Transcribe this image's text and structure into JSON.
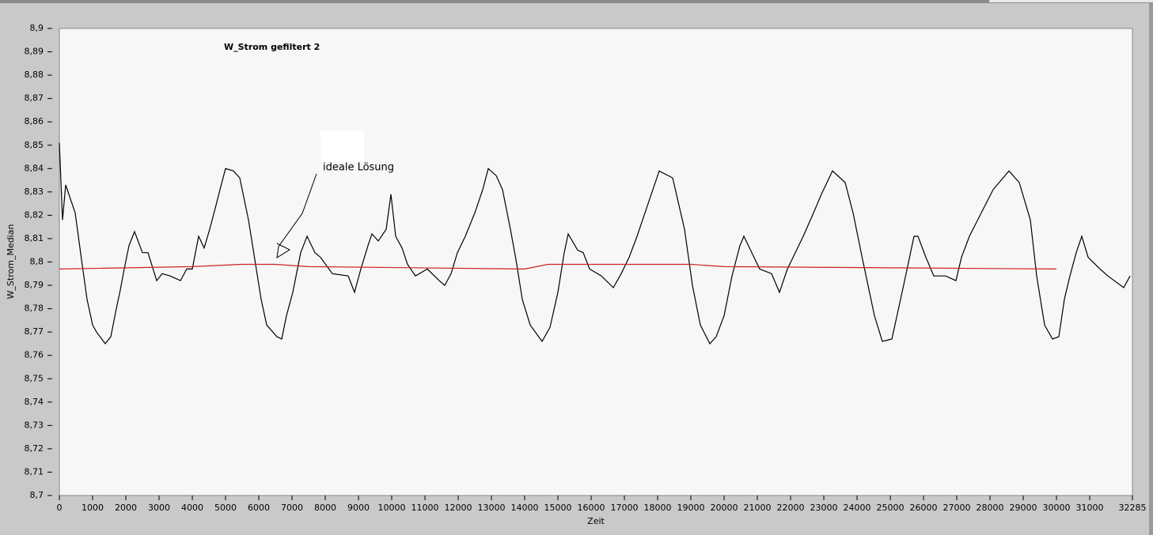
{
  "chart_data": {
    "type": "line",
    "title": "W_Strom gefiltert 2",
    "xlabel": "Zeit",
    "ylabel": "W_Strom_Median",
    "annotation": "ideale Lösung",
    "xlim": [
      0,
      32285
    ],
    "ylim": [
      8.7,
      8.9
    ],
    "xticks": [
      0,
      1000,
      2000,
      3000,
      4000,
      5000,
      6000,
      7000,
      8000,
      9000,
      10000,
      11000,
      12000,
      13000,
      14000,
      15000,
      16000,
      17000,
      18000,
      19000,
      20000,
      21000,
      22000,
      23000,
      24000,
      25000,
      26000,
      27000,
      28000,
      29000,
      30000,
      31000,
      32285
    ],
    "yticks": [
      {
        "value": 8.7,
        "label": "8,7"
      },
      {
        "value": 8.71,
        "label": "8,71"
      },
      {
        "value": 8.72,
        "label": "8,72"
      },
      {
        "value": 8.73,
        "label": "8,73"
      },
      {
        "value": 8.74,
        "label": "8,74"
      },
      {
        "value": 8.75,
        "label": "8,75"
      },
      {
        "value": 8.76,
        "label": "8,76"
      },
      {
        "value": 8.77,
        "label": "8,77"
      },
      {
        "value": 8.78,
        "label": "8,78"
      },
      {
        "value": 8.79,
        "label": "8,79"
      },
      {
        "value": 8.8,
        "label": "8,8"
      },
      {
        "value": 8.81,
        "label": "8,81"
      },
      {
        "value": 8.82,
        "label": "8,82"
      },
      {
        "value": 8.83,
        "label": "8,83"
      },
      {
        "value": 8.84,
        "label": "8,84"
      },
      {
        "value": 8.85,
        "label": "8,85"
      },
      {
        "value": 8.86,
        "label": "8,86"
      },
      {
        "value": 8.87,
        "label": "8,87"
      },
      {
        "value": 8.88,
        "label": "8,88"
      },
      {
        "value": 8.89,
        "label": "8,89"
      },
      {
        "value": 8.9,
        "label": "8,9"
      }
    ],
    "series": [
      {
        "color": "#000000",
        "x": [
          0,
          95,
          190,
          476,
          667,
          833,
          1000,
          1119,
          1381,
          1548,
          1714,
          1833,
          1952,
          2095,
          2262,
          2500,
          2667,
          2929,
          3095,
          3333,
          3643,
          3833,
          4000,
          4190,
          4357,
          4524,
          4690,
          4833,
          5000,
          5238,
          5429,
          5690,
          5881,
          6071,
          6238,
          6548,
          6690,
          6833,
          7024,
          7262,
          7452,
          7690,
          7857,
          8214,
          8690,
          8881,
          9071,
          9286,
          9405,
          9595,
          9833,
          9976,
          10119,
          10310,
          10476,
          10714,
          11071,
          11429,
          11595,
          11786,
          11976,
          12214,
          12500,
          12738,
          12905,
          13143,
          13333,
          13571,
          13738,
          13929,
          14167,
          14524,
          14762,
          15000,
          15190,
          15310,
          15595,
          15762,
          15952,
          16310,
          16667,
          16905,
          17143,
          17381,
          17619,
          17857,
          18048,
          18452,
          18810,
          19048,
          19286,
          19571,
          19762,
          20000,
          20238,
          20476,
          20595,
          20833,
          21071,
          21429,
          21667,
          21905,
          22143,
          22381,
          22690,
          22929,
          23262,
          23643,
          23881,
          24167,
          24524,
          24762,
          25048,
          25310,
          25476,
          25714,
          25833,
          26071,
          26310,
          26667,
          26976,
          27143,
          27381,
          27738,
          28095,
          28571,
          28881,
          29214,
          29405,
          29643,
          29881,
          30071,
          30238,
          30405,
          30595,
          30762,
          30952,
          31310,
          31548,
          32024,
          32214
        ],
        "values": [
          8.851,
          8.818,
          8.833,
          8.821,
          8.801,
          8.784,
          8.773,
          8.77,
          8.765,
          8.768,
          8.78,
          8.788,
          8.797,
          8.807,
          8.813,
          8.804,
          8.804,
          8.792,
          8.795,
          8.794,
          8.792,
          8.797,
          8.797,
          8.811,
          8.806,
          8.814,
          8.823,
          8.831,
          8.84,
          8.839,
          8.836,
          8.818,
          8.801,
          8.784,
          8.773,
          8.768,
          8.767,
          8.777,
          8.787,
          8.804,
          8.811,
          8.804,
          8.802,
          8.795,
          8.794,
          8.787,
          8.797,
          8.807,
          8.812,
          8.809,
          8.814,
          8.829,
          8.811,
          8.806,
          8.799,
          8.794,
          8.797,
          8.792,
          8.79,
          8.795,
          8.804,
          8.811,
          8.821,
          8.831,
          8.84,
          8.837,
          8.831,
          8.814,
          8.801,
          8.784,
          8.773,
          8.766,
          8.772,
          8.787,
          8.804,
          8.812,
          8.805,
          8.804,
          8.797,
          8.794,
          8.789,
          8.795,
          8.802,
          8.811,
          8.821,
          8.831,
          8.839,
          8.836,
          8.814,
          8.79,
          8.773,
          8.765,
          8.768,
          8.777,
          8.794,
          8.807,
          8.811,
          8.804,
          8.797,
          8.795,
          8.787,
          8.797,
          8.804,
          8.811,
          8.821,
          8.829,
          8.839,
          8.834,
          8.821,
          8.801,
          8.777,
          8.766,
          8.767,
          8.784,
          8.795,
          8.811,
          8.811,
          8.802,
          8.794,
          8.794,
          8.792,
          8.802,
          8.811,
          8.821,
          8.831,
          8.839,
          8.834,
          8.818,
          8.794,
          8.773,
          8.767,
          8.768,
          8.784,
          8.794,
          8.804,
          8.811,
          8.802,
          8.797,
          8.794,
          8.789,
          8.794
        ]
      },
      {
        "color": "#cc2222",
        "x": [
          0,
          4000,
          5500,
          6500,
          7500,
          14000,
          14700,
          19000,
          20000,
          30000
        ],
        "values": [
          8.797,
          8.798,
          8.799,
          8.799,
          8.798,
          8.797,
          8.799,
          8.799,
          8.798,
          8.797
        ]
      }
    ]
  }
}
